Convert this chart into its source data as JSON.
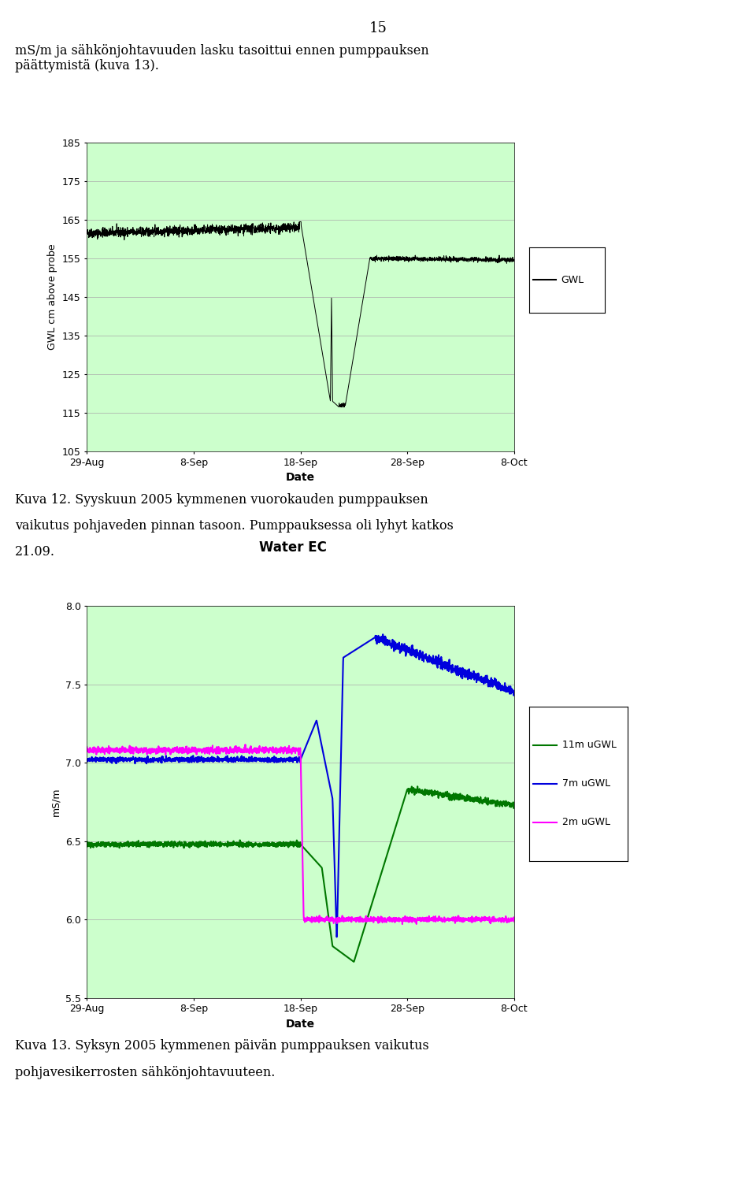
{
  "page_number": "15",
  "text_top_line1": "mS/m ja sähkönjohtavuuden lasku tasoittui ennen pumppauksen",
  "text_top_line2": "päättymistä (kuva 13).",
  "caption1_line1": "Kuva 12. Syyskuun 2005 kymmenen vuorokauden pumppauksen",
  "caption1_line2": "vaikutus pohjaveden pinnan tasoon. Pumppauksessa oli lyhyt katkos",
  "caption1_line3": "21.09.",
  "caption2_line1": "Kuva 13. Syksyn 2005 kymmenen päivän pumppauksen vaikutus",
  "caption2_line2": "pohjavesikerrosten sähkönjohtavuuteen.",
  "chart1": {
    "ylabel": "GWL cm above probe",
    "xlabel": "Date",
    "legend_label": "GWL",
    "ylim": [
      105,
      185
    ],
    "yticks": [
      105,
      115,
      125,
      135,
      145,
      155,
      165,
      175,
      185
    ],
    "xtick_labels": [
      "29-Aug",
      "8-Sep",
      "18-Sep",
      "28-Sep",
      "8-Oct"
    ],
    "bg_outer": "#7fba00",
    "bg_inner": "#ccffcc",
    "line_color": "#000000"
  },
  "chart2": {
    "title": "Water EC",
    "ylabel": "mS/m",
    "xlabel": "Date",
    "ylim": [
      5.5,
      8.0
    ],
    "yticks": [
      5.5,
      6.0,
      6.5,
      7.0,
      7.5,
      8.0
    ],
    "xtick_labels": [
      "29-Aug",
      "8-Sep",
      "18-Sep",
      "28-Sep",
      "8-Oct"
    ],
    "bg_outer": "#7fba00",
    "bg_inner": "#ccffcc",
    "legend_labels": [
      "11m uGWL",
      "7m uGWL",
      "2m uGWL"
    ],
    "legend_colors": [
      "#007700",
      "#0000dd",
      "#ff00ff"
    ]
  }
}
